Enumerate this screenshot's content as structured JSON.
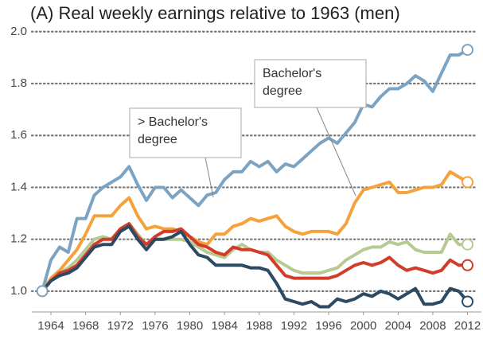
{
  "chart_data": {
    "type": "line",
    "title": "(A) Real weekly earnings relative to 1963 (men)",
    "x": [
      1963,
      1964,
      1965,
      1966,
      1967,
      1968,
      1969,
      1970,
      1971,
      1972,
      1973,
      1974,
      1975,
      1976,
      1977,
      1978,
      1979,
      1980,
      1981,
      1982,
      1983,
      1984,
      1985,
      1986,
      1987,
      1988,
      1989,
      1990,
      1991,
      1992,
      1993,
      1994,
      1995,
      1996,
      1997,
      1998,
      1999,
      2000,
      2001,
      2002,
      2003,
      2004,
      2005,
      2006,
      2007,
      2008,
      2009,
      2010,
      2011,
      2012
    ],
    "series": [
      {
        "color": "#7ca4c2",
        "values": [
          1.0,
          1.12,
          1.17,
          1.15,
          1.28,
          1.28,
          1.37,
          1.4,
          1.42,
          1.44,
          1.48,
          1.41,
          1.35,
          1.4,
          1.4,
          1.36,
          1.39,
          1.36,
          1.33,
          1.37,
          1.38,
          1.43,
          1.46,
          1.46,
          1.5,
          1.48,
          1.5,
          1.46,
          1.49,
          1.48,
          1.51,
          1.54,
          1.57,
          1.59,
          1.57,
          1.61,
          1.65,
          1.72,
          1.71,
          1.75,
          1.78,
          1.78,
          1.8,
          1.83,
          1.81,
          1.77,
          1.84,
          1.91,
          1.91,
          1.93
        ]
      },
      {
        "color": "#f5a23c",
        "values": [
          1.0,
          1.05,
          1.08,
          1.12,
          1.16,
          1.22,
          1.29,
          1.29,
          1.29,
          1.33,
          1.36,
          1.29,
          1.24,
          1.25,
          1.24,
          1.24,
          1.23,
          1.21,
          1.19,
          1.18,
          1.22,
          1.22,
          1.25,
          1.26,
          1.28,
          1.27,
          1.28,
          1.29,
          1.25,
          1.23,
          1.22,
          1.23,
          1.23,
          1.23,
          1.22,
          1.26,
          1.34,
          1.39,
          1.4,
          1.41,
          1.42,
          1.38,
          1.38,
          1.39,
          1.4,
          1.4,
          1.41,
          1.46,
          1.44,
          1.42
        ]
      },
      {
        "color": "#b7ca92",
        "values": [
          1.0,
          1.04,
          1.07,
          1.09,
          1.12,
          1.16,
          1.2,
          1.21,
          1.2,
          1.24,
          1.26,
          1.22,
          1.18,
          1.2,
          1.2,
          1.2,
          1.2,
          1.19,
          1.17,
          1.15,
          1.14,
          1.13,
          1.16,
          1.18,
          1.16,
          1.15,
          1.15,
          1.12,
          1.1,
          1.08,
          1.07,
          1.07,
          1.07,
          1.08,
          1.09,
          1.12,
          1.14,
          1.16,
          1.17,
          1.17,
          1.19,
          1.18,
          1.19,
          1.16,
          1.15,
          1.15,
          1.15,
          1.22,
          1.18,
          1.18
        ]
      },
      {
        "color": "#d23d2b",
        "values": [
          1.0,
          1.04,
          1.07,
          1.08,
          1.1,
          1.14,
          1.18,
          1.2,
          1.2,
          1.24,
          1.26,
          1.21,
          1.18,
          1.21,
          1.23,
          1.23,
          1.24,
          1.21,
          1.18,
          1.17,
          1.15,
          1.14,
          1.17,
          1.16,
          1.16,
          1.15,
          1.14,
          1.1,
          1.06,
          1.05,
          1.05,
          1.05,
          1.05,
          1.05,
          1.06,
          1.08,
          1.1,
          1.11,
          1.1,
          1.11,
          1.13,
          1.1,
          1.08,
          1.09,
          1.08,
          1.07,
          1.08,
          1.12,
          1.1,
          1.1
        ]
      },
      {
        "color": "#2c4a63",
        "values": [
          1.0,
          1.04,
          1.06,
          1.07,
          1.09,
          1.13,
          1.17,
          1.18,
          1.18,
          1.23,
          1.25,
          1.2,
          1.16,
          1.2,
          1.2,
          1.21,
          1.23,
          1.18,
          1.14,
          1.13,
          1.1,
          1.1,
          1.1,
          1.1,
          1.09,
          1.09,
          1.08,
          1.03,
          0.97,
          0.96,
          0.95,
          0.96,
          0.94,
          0.94,
          0.97,
          0.96,
          0.97,
          0.99,
          0.98,
          1.0,
          0.99,
          0.97,
          0.99,
          1.01,
          0.95,
          0.95,
          0.96,
          1.01,
          1.0,
          0.96
        ]
      }
    ],
    "xlim": [
      1961.8,
      2013.6
    ],
    "xticks": [
      1964,
      1968,
      1972,
      1976,
      1980,
      1984,
      1988,
      1992,
      1996,
      2000,
      2004,
      2008,
      2012
    ],
    "ylim": [
      0.92,
      2.03
    ],
    "yticks": [
      {
        "value": 1.0,
        "label": "1.0"
      },
      1.2,
      1.4,
      1.6,
      1.8,
      {
        "value": 2.0,
        "label": "2.0"
      }
    ],
    "grid": true,
    "annotations": [
      {
        "lines": [
          "> Bachelor's",
          "degree"
        ]
      },
      {
        "lines": [
          "Bachelor's",
          "degree"
        ]
      }
    ]
  }
}
